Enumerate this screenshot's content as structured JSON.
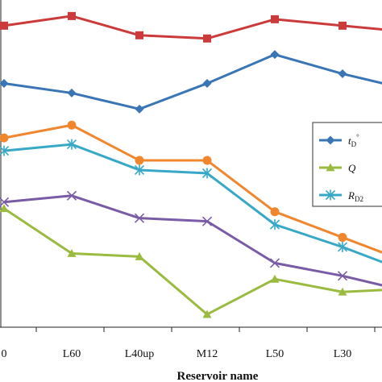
{
  "chart_data": {
    "type": "line",
    "title": "",
    "xlabel": "Reservoir name",
    "ylabel": "",
    "categories": [
      "0",
      "L60",
      "L40up",
      "M12",
      "L50",
      "L30",
      ""
    ],
    "grid": false,
    "legend_position": "right",
    "series": [
      {
        "id": "red",
        "color": "#cc3b3b",
        "marker": "square",
        "values": [
          0.92,
          0.95,
          0.89,
          0.88,
          0.94,
          0.92,
          0.9
        ]
      },
      {
        "id": "td",
        "name": "tD°",
        "legend": {
          "main": "t",
          "sub": "D",
          "sup": "°"
        },
        "color": "#3a75b6",
        "marker": "diamond",
        "values": [
          0.74,
          0.71,
          0.66,
          0.74,
          0.83,
          0.77,
          0.72
        ]
      },
      {
        "id": "orange",
        "color": "#f0872e",
        "marker": "circle",
        "values": [
          0.57,
          0.61,
          0.5,
          0.5,
          0.34,
          0.26,
          0.18
        ]
      },
      {
        "id": "Q",
        "name": "Q",
        "legend": {
          "main": "Q",
          "sub": "",
          "sup": ""
        },
        "color": "#9bbb40",
        "marker": "triangle",
        "values": [
          0.35,
          0.21,
          0.2,
          0.02,
          0.13,
          0.09,
          0.1
        ]
      },
      {
        "id": "RD2",
        "name": "RD2",
        "legend": {
          "main": "R",
          "sub": "D2",
          "sup": ""
        },
        "color": "#37a9c6",
        "marker": "star",
        "values": [
          0.53,
          0.55,
          0.47,
          0.46,
          0.3,
          0.23,
          0.15
        ]
      },
      {
        "id": "purple",
        "color": "#7a5ca6",
        "marker": "x",
        "values": [
          0.37,
          0.39,
          0.32,
          0.31,
          0.18,
          0.14,
          0.09
        ]
      }
    ],
    "legend_order": [
      "td",
      "Q",
      "RD2"
    ],
    "ylim": [
      -0.02,
      1.0
    ]
  }
}
